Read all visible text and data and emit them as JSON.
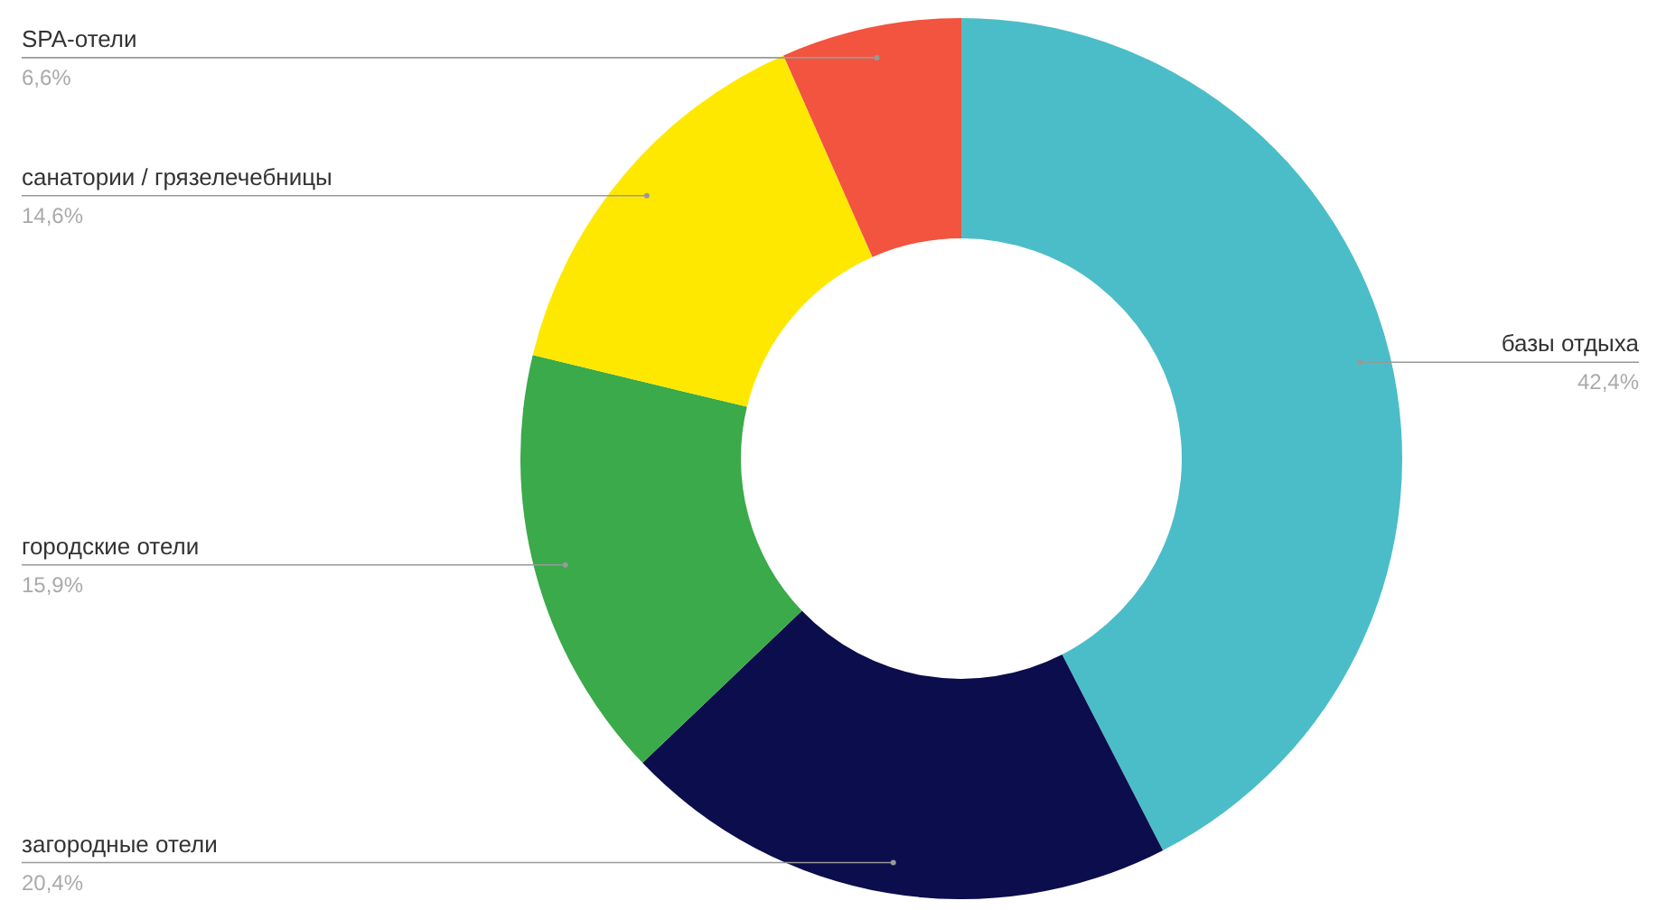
{
  "chart_data": {
    "type": "donut",
    "categories": [
      "базы отдыха",
      "загородные отели",
      "городские отели",
      "санатории / грязелечебницы",
      "SPA-отели"
    ],
    "values": [
      42.4,
      20.4,
      15.9,
      14.6,
      6.6
    ],
    "colors": [
      "#4bbdc8",
      "#0b0d4c",
      "#3aaa4a",
      "#ffe800",
      "#f2543f"
    ],
    "value_labels": [
      "42,4%",
      "20,4%",
      "15,9%",
      "14,6%",
      "6,6%"
    ]
  }
}
